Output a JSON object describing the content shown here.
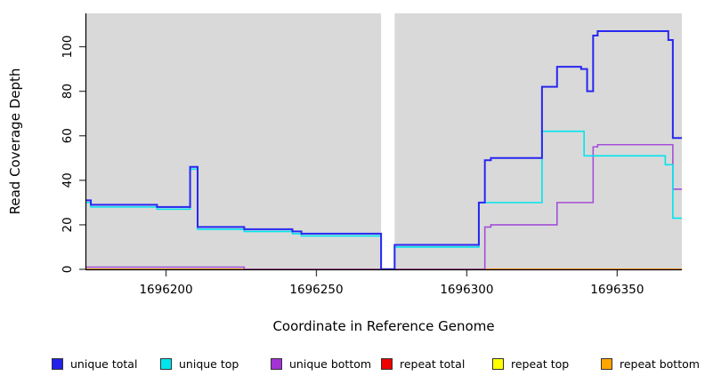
{
  "chart_data": {
    "type": "line",
    "subtype": "step",
    "title": "",
    "xlabel": "Coordinate in Reference Genome",
    "ylabel": "Read Coverage Depth",
    "xlim": [
      1696173.5,
      1696371.5
    ],
    "ylim": [
      0,
      115
    ],
    "grid": false,
    "plot_bg": "#d9d9d9",
    "page_bg": "#ffffff",
    "axis_color": "#000000",
    "tick_color": "#444444",
    "gap_region": {
      "x0": 1696271.5,
      "x1": 1696276,
      "color": "#ffffff"
    },
    "x_ticks": [
      {
        "value": 1696200,
        "label": "1696200"
      },
      {
        "value": 1696250,
        "label": "1696250"
      },
      {
        "value": 1696300,
        "label": "1696300"
      },
      {
        "value": 1696350,
        "label": "1696350"
      }
    ],
    "y_ticks": [
      {
        "value": 0,
        "label": "0"
      },
      {
        "value": 20,
        "label": "20"
      },
      {
        "value": 40,
        "label": "40"
      },
      {
        "value": 60,
        "label": "60"
      },
      {
        "value": 80,
        "label": "80"
      },
      {
        "value": 100,
        "label": "100"
      }
    ],
    "series": [
      {
        "label": "repeat top",
        "color": "#FFFF00",
        "width": 1.6,
        "points": [
          [
            1696173.5,
            0
          ],
          [
            1696371.5,
            0
          ]
        ]
      },
      {
        "label": "repeat total",
        "color": "#EE0000",
        "width": 1.6,
        "points": [
          [
            1696173.5,
            0
          ],
          [
            1696371.5,
            0
          ]
        ]
      },
      {
        "label": "repeat bottom",
        "color": "#FFA500",
        "width": 1.6,
        "points": [
          [
            1696173.5,
            0
          ],
          [
            1696371.5,
            0
          ]
        ]
      },
      {
        "label": "unique bottom",
        "color": "#A44FD8",
        "width": 1.6,
        "points": [
          [
            1696173.5,
            1
          ],
          [
            1696226,
            0
          ],
          [
            1696306,
            19
          ],
          [
            1696308,
            20
          ],
          [
            1696330,
            30
          ],
          [
            1696342,
            55
          ],
          [
            1696343.5,
            56
          ],
          [
            1696368.5,
            36
          ],
          [
            1696371.5,
            36
          ]
        ]
      },
      {
        "label": "unique top",
        "color": "#00E5EE",
        "width": 1.6,
        "points": [
          [
            1696173.5,
            30
          ],
          [
            1696175,
            28
          ],
          [
            1696197,
            27
          ],
          [
            1696208,
            45
          ],
          [
            1696210.5,
            18
          ],
          [
            1696226,
            17
          ],
          [
            1696242,
            16
          ],
          [
            1696245,
            15
          ],
          [
            1696271.5,
            0
          ],
          [
            1696276,
            10
          ],
          [
            1696304,
            30
          ],
          [
            1696325,
            62
          ],
          [
            1696339,
            51
          ],
          [
            1696366,
            47
          ],
          [
            1696368.5,
            23
          ],
          [
            1696371.5,
            23
          ]
        ]
      },
      {
        "label": "unique total",
        "color": "#2727F0",
        "width": 2,
        "points": [
          [
            1696173.5,
            31
          ],
          [
            1696175,
            29
          ],
          [
            1696197,
            28
          ],
          [
            1696208,
            46
          ],
          [
            1696210.5,
            19
          ],
          [
            1696226,
            18
          ],
          [
            1696242,
            17
          ],
          [
            1696245,
            16
          ],
          [
            1696271.5,
            0
          ],
          [
            1696276,
            11
          ],
          [
            1696304,
            30
          ],
          [
            1696306,
            49
          ],
          [
            1696308,
            50
          ],
          [
            1696325,
            82
          ],
          [
            1696330,
            91
          ],
          [
            1696338,
            90
          ],
          [
            1696340,
            80
          ],
          [
            1696342,
            105
          ],
          [
            1696343.5,
            107
          ],
          [
            1696367,
            103
          ],
          [
            1696368.5,
            59
          ],
          [
            1696371.5,
            59
          ]
        ]
      }
    ],
    "legend": [
      {
        "label": "unique total",
        "color": "#2121EB"
      },
      {
        "label": "unique top",
        "color": "#00E5EE"
      },
      {
        "label": "unique bottom",
        "color": "#A333D6"
      },
      {
        "label": "repeat total",
        "color": "#EE0000"
      },
      {
        "label": "repeat top",
        "color": "#FFFF00"
      },
      {
        "label": "repeat bottom",
        "color": "#FFA500"
      }
    ],
    "legend_position": "bottom"
  }
}
